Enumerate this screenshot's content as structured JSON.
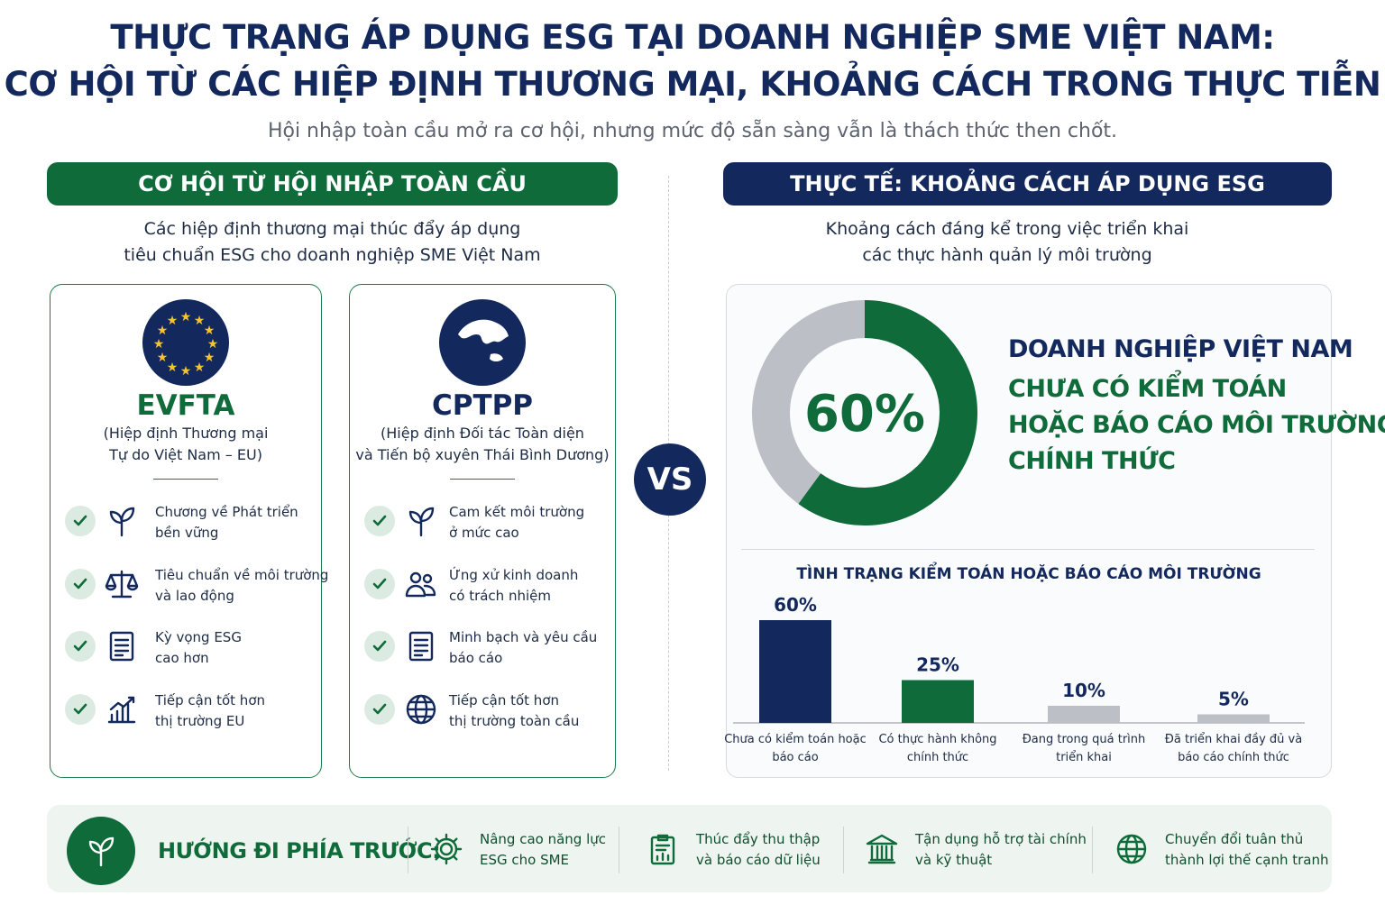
{
  "header": {
    "title_lines": [
      "THỰC TRẠNG ÁP DỤNG ESG TẠI DOANH NGHIỆP SME VIỆT NAM:",
      "CƠ HỘI TỪ CÁC HIỆP ĐỊNH THƯƠNG MẠI, KHOẢNG CÁCH TRONG THỰC TIỄN"
    ],
    "subtitle": "Hội nhập toàn cầu mở ra cơ hội, nhưng mức độ sẵn sàng vẫn là thách thức then chốt."
  },
  "left": {
    "heading": "CƠ HỘI TỪ HỘI NHẬP TOÀN CẦU",
    "intro_lines": [
      "Các hiệp định thương mại thúc đẩy áp dụng",
      "tiêu chuẩn ESG cho doanh nghiệp SME Việt Nam"
    ],
    "cards": [
      {
        "name": "EVFTA",
        "desc_lines": [
          "(Hiệp định Thương mại",
          "Tự do Việt Nam – EU)"
        ],
        "items": [
          [
            "Chương về Phát triển",
            "bền vững"
          ],
          [
            "Tiêu chuẩn về môi trường",
            "và lao động"
          ],
          [
            "Kỳ vọng ESG",
            "cao hơn"
          ],
          [
            "Tiếp cận tốt hơn",
            "thị trường EU"
          ]
        ]
      },
      {
        "name": "CPTPP",
        "desc_lines": [
          "(Hiệp định Đối tác Toàn diện",
          "và Tiến bộ xuyên Thái Bình Dương)"
        ],
        "items": [
          [
            "Cam kết môi trường",
            "ở mức cao"
          ],
          [
            "Ứng xử kinh doanh",
            "có trách nhiệm"
          ],
          [
            "Minh bạch và yêu cầu",
            "báo cáo"
          ],
          [
            "Tiếp cận tốt hơn",
            "thị trường toàn cầu"
          ]
        ]
      }
    ]
  },
  "vs": "VS",
  "right": {
    "heading": "THỰC TẾ: KHOẢNG CÁCH ÁP DỤNG ESG",
    "intro_lines": [
      "Khoảng cách đáng kể trong việc triển khai",
      "các thực hành quản lý môi trường"
    ],
    "highlight_lines": [
      "DOANH NGHIỆP VIỆT NAM",
      "CHƯA CÓ KIỂM TOÁN",
      "HOẶC BÁO CÁO MÔI TRƯỜNG",
      "CHÍNH THỨC"
    ]
  },
  "chart_data": [
    {
      "type": "pie",
      "donut": true,
      "values": [
        60,
        40
      ],
      "value_labels": [
        "60%",
        null
      ],
      "colors": [
        "#0f6b3a",
        "#bcc0c6"
      ]
    },
    {
      "type": "bar",
      "title": "TÌNH TRẠNG KIỂM TOÁN HOẶC BÁO CÁO MÔI TRƯỜNG",
      "categories": [
        "Chưa có kiểm toán hoặc báo cáo",
        "Có thực hành không chính thức",
        "Đang trong quá trình triển khai",
        "Đã triển khai đầy đủ và báo cáo chính thức"
      ],
      "values": [
        60,
        25,
        10,
        5
      ],
      "value_labels": [
        "60%",
        "25%",
        "10%",
        "5%"
      ],
      "colors": [
        "#13285c",
        "#0f6b3a",
        "#bcc0c6",
        "#bcc0c6"
      ]
    }
  ],
  "footer": {
    "label": "HƯỚNG ĐI PHÍA TRƯỚC:",
    "items": [
      [
        "Nâng cao năng lực",
        "ESG cho SME"
      ],
      [
        "Thúc đẩy thu thập",
        "và báo cáo dữ liệu"
      ],
      [
        "Tận dụng hỗ trợ tài chính",
        "và kỹ thuật"
      ],
      [
        "Chuyển đổi tuân thủ",
        "thành lợi thế cạnh tranh"
      ]
    ]
  }
}
